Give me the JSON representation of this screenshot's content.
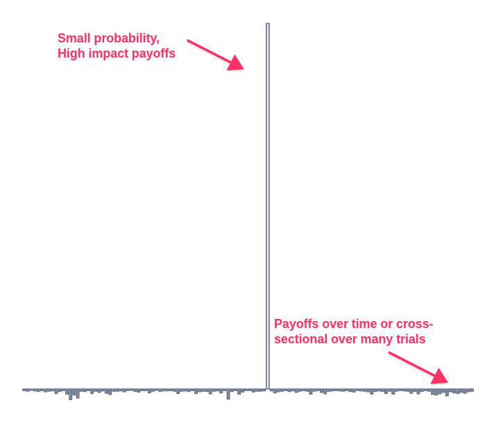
{
  "chart_data": {
    "type": "bar",
    "title": "",
    "xlabel": "",
    "ylabel": "",
    "ylim": [
      -4,
      100
    ],
    "bar_color": "#7f88a1",
    "bar_edge_color": "#515b72",
    "axis_color": "#7b8093",
    "values": [
      -0.6,
      -0.8,
      -0.5,
      -0.7,
      -0.9,
      -0.6,
      -1.0,
      -0.8,
      -0.7,
      -1.6,
      -0.9,
      -0.6,
      -1.8,
      -3.7,
      -2.1,
      -3.1,
      -0.8,
      -0.9,
      -0.6,
      -1.6,
      -0.8,
      -1.2,
      -0.7,
      -1.5,
      -1.9,
      -0.8,
      -0.8,
      -0.7,
      -1.0,
      -0.6,
      -0.5,
      -0.9,
      -1.1,
      -0.6,
      -0.6,
      -1.4,
      -0.8,
      -0.5,
      -0.9,
      -0.7,
      -0.7,
      -0.6,
      -0.8,
      -1.6,
      -0.8,
      -0.7,
      -0.9,
      -0.6,
      -1.6,
      -1.0,
      -0.8,
      -0.9,
      -1.7,
      -0.8,
      -0.7,
      -1.4,
      -0.6,
      -3.5,
      -0.9,
      -0.6,
      -1.8,
      -1.1,
      -0.6,
      -0.6,
      -1.1,
      -0.8,
      -0.8,
      -0.7,
      100,
      -0.7,
      -1.4,
      -1.0,
      -0.8,
      -0.6,
      -0.9,
      -0.7,
      -1.2,
      -0.8,
      -0.6,
      -0.8,
      -1.8,
      -0.8,
      -0.6,
      -1.2,
      -1.7,
      -0.9,
      -0.7,
      -0.6,
      -0.7,
      -0.8,
      -0.6,
      -0.9,
      -1.1,
      -0.6,
      -0.7,
      -0.8,
      -1.0,
      -1.8,
      -0.9,
      -0.7,
      -0.9,
      -1.6,
      -0.8,
      -1.8,
      -0.8,
      -0.6,
      -0.7,
      -0.8,
      -1.5,
      -0.9,
      -1.7,
      -0.9,
      -0.6,
      -0.8,
      -1.9,
      -2.1,
      -1.7,
      -1.2,
      -2.4,
      -1.0,
      -1.4,
      -1.6,
      -1.2,
      -1.5,
      -1.0,
      -0.8
    ],
    "annotations": [
      {
        "lines": [
          "Small probability,",
          "High impact payoffs"
        ],
        "color": "#ff3366"
      },
      {
        "lines": [
          "Payoffs over time or cross-",
          "sectional over many trials"
        ],
        "color": "#ff3366"
      }
    ]
  }
}
